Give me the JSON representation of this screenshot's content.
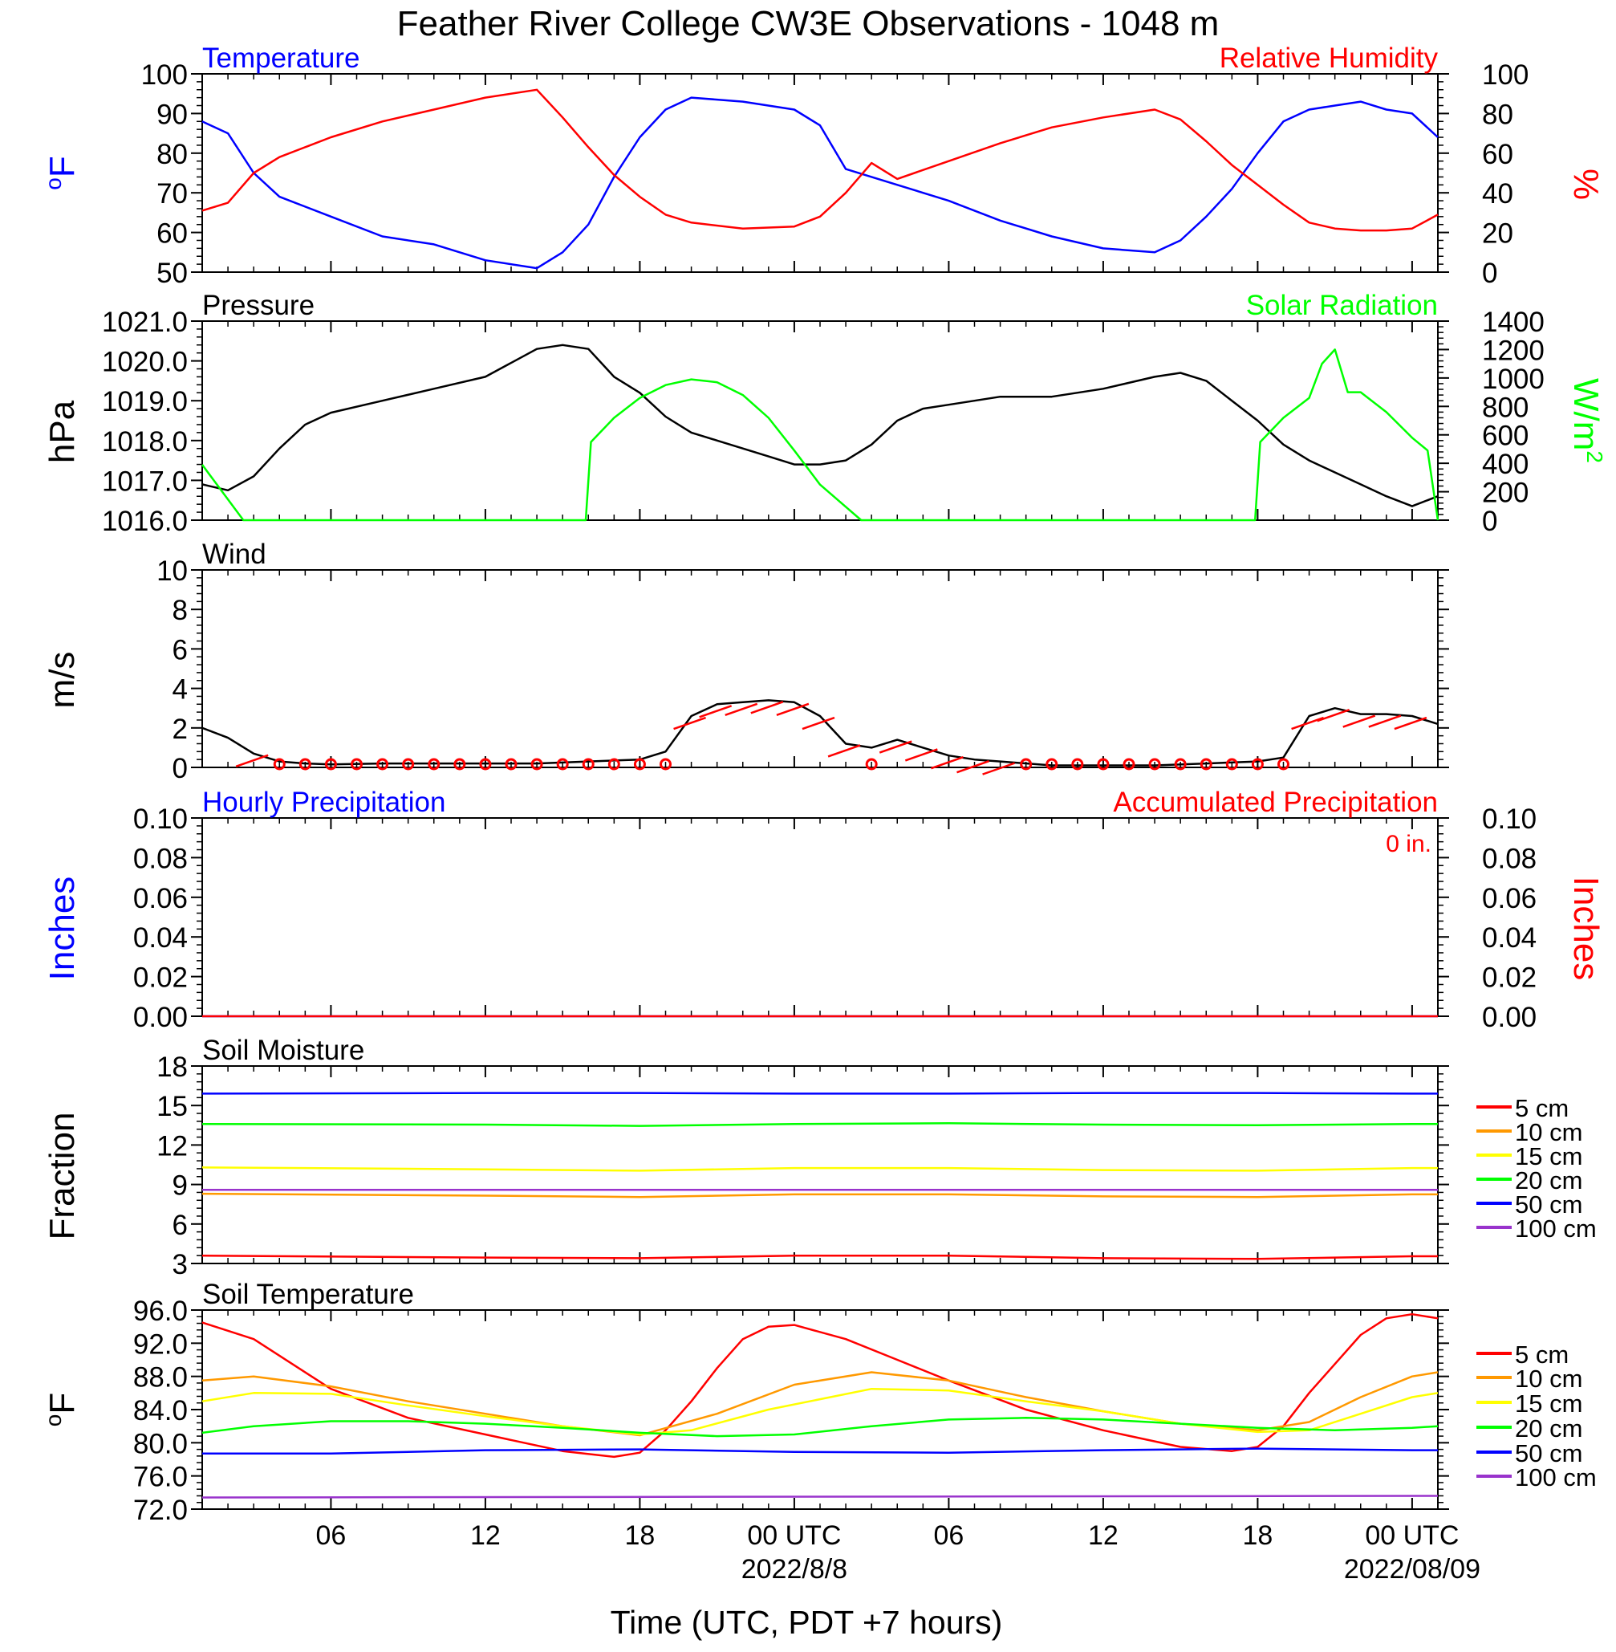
{
  "title": "Feather River College CW3E Observations - 1048 m",
  "x_axis": {
    "label": "Time (UTC, PDT +7 hours)",
    "tick_labels": [
      "06",
      "12",
      "18",
      "00 UTC",
      "06",
      "12",
      "18",
      "00 UTC"
    ],
    "tick_hours": [
      6,
      12,
      18,
      24,
      30,
      36,
      42,
      48
    ],
    "date_labels": [
      {
        "text": "2022/8/8",
        "hour": 24
      },
      {
        "text": "2022/08/09",
        "hour": 48
      }
    ],
    "range_hours": [
      1,
      49
    ]
  },
  "chart_data": [
    {
      "type": "line",
      "name": "temperature-humidity",
      "left_title": "Temperature",
      "right_title": "Relative Humidity",
      "left_unit": "oF",
      "right_unit": "%",
      "ylim_left": [
        50,
        100
      ],
      "ylim_right": [
        0,
        100
      ],
      "yticks_left": [
        50,
        60,
        70,
        80,
        90,
        100
      ],
      "yticks_right": [
        0,
        20,
        40,
        60,
        80,
        100
      ],
      "colors": {
        "left": "#0000ff",
        "right": "#ff0000"
      },
      "series": [
        {
          "axis": "left",
          "x": [
            1,
            2,
            3,
            4,
            6,
            8,
            10,
            12,
            14,
            15,
            16,
            17,
            18,
            19,
            20,
            22,
            24,
            25,
            26,
            27,
            28,
            30,
            32,
            34,
            36,
            38,
            39,
            40,
            41,
            42,
            43,
            44,
            45,
            46,
            47,
            48,
            49
          ],
          "y": [
            88,
            85,
            75,
            69,
            64,
            59,
            57,
            53,
            51,
            55,
            62,
            74,
            84,
            91,
            94,
            93,
            91,
            87,
            76,
            74,
            72,
            68,
            63,
            59,
            56,
            55,
            58,
            64,
            71,
            80,
            88,
            91,
            92,
            93,
            91,
            90,
            84
          ]
        },
        {
          "axis": "right",
          "x": [
            1,
            2,
            3,
            4,
            6,
            8,
            10,
            12,
            14,
            15,
            16,
            17,
            18,
            19,
            20,
            22,
            24,
            25,
            26,
            27,
            28,
            30,
            32,
            34,
            36,
            38,
            39,
            40,
            41,
            42,
            43,
            44,
            45,
            46,
            47,
            48,
            49
          ],
          "y": [
            31,
            35,
            50,
            58,
            68,
            76,
            82,
            88,
            92,
            78,
            63,
            49,
            38,
            29,
            25,
            22,
            23,
            28,
            40,
            55,
            47,
            56,
            65,
            73,
            78,
            82,
            77,
            66,
            54,
            44,
            34,
            25,
            22,
            21,
            21,
            22,
            29
          ]
        }
      ]
    },
    {
      "type": "line",
      "name": "pressure-solar",
      "left_title": "Pressure",
      "right_title": "Solar Radiation",
      "left_unit": "hPa",
      "right_unit": "W/m",
      "ylim_left": [
        1016.0,
        1021.0
      ],
      "ylim_right": [
        0,
        1400
      ],
      "yticks_left": [
        "1016.0",
        "1017.0",
        "1018.0",
        "1019.0",
        "1020.0",
        "1021.0"
      ],
      "yticks_right": [
        0,
        200,
        400,
        600,
        800,
        1000,
        1200,
        1400
      ],
      "colors": {
        "left": "#000000",
        "right": "#00ff00"
      },
      "series": [
        {
          "axis": "left",
          "x": [
            1,
            2,
            3,
            4,
            5,
            6,
            8,
            10,
            12,
            14,
            15,
            16,
            17,
            18,
            19,
            20,
            21,
            22,
            23,
            24,
            25,
            26,
            27,
            28,
            29,
            30,
            32,
            34,
            36,
            38,
            39,
            40,
            41,
            42,
            43,
            44,
            45,
            46,
            47,
            48,
            49
          ],
          "y": [
            1016.9,
            1016.75,
            1017.1,
            1017.8,
            1018.4,
            1018.7,
            1019.0,
            1019.3,
            1019.6,
            1020.3,
            1020.4,
            1020.3,
            1019.6,
            1019.2,
            1018.6,
            1018.2,
            1018.0,
            1017.8,
            1017.6,
            1017.4,
            1017.4,
            1017.5,
            1017.9,
            1018.5,
            1018.8,
            1018.9,
            1019.1,
            1019.1,
            1019.3,
            1019.6,
            1019.7,
            1019.5,
            1019.0,
            1018.5,
            1017.9,
            1017.5,
            1017.2,
            1016.9,
            1016.6,
            1016.35,
            1016.6
          ]
        },
        {
          "axis": "right",
          "x": [
            1,
            2.6,
            15.9,
            16.1,
            17,
            18,
            19,
            20,
            21,
            22,
            23,
            24,
            25,
            26.6,
            41.9,
            42.1,
            43,
            44,
            44.5,
            45,
            45.5,
            46,
            47,
            48,
            48.6,
            49
          ],
          "y": [
            390,
            0,
            0,
            550,
            720,
            860,
            950,
            990,
            970,
            880,
            720,
            490,
            250,
            0,
            0,
            550,
            720,
            860,
            1100,
            1200,
            900,
            900,
            760,
            580,
            490,
            0
          ]
        }
      ]
    },
    {
      "type": "line",
      "name": "wind",
      "left_title": "Wind",
      "left_unit": "m/s",
      "ylim_left": [
        0,
        10
      ],
      "yticks_left": [
        0,
        2,
        4,
        6,
        8,
        10
      ],
      "colors": {
        "left": "#000000",
        "barbs": "#ff0000"
      },
      "series": [
        {
          "axis": "left",
          "x": [
            1,
            2,
            3,
            4,
            5,
            6,
            8,
            10,
            12,
            14,
            16,
            18,
            19,
            20,
            21,
            22,
            23,
            24,
            25,
            26,
            27,
            28,
            29,
            30,
            31,
            32,
            34,
            36,
            38,
            40,
            42,
            43,
            44,
            45,
            46,
            47,
            48,
            49
          ],
          "y": [
            2.0,
            1.5,
            0.7,
            0.3,
            0.2,
            0.15,
            0.2,
            0.2,
            0.2,
            0.2,
            0.3,
            0.4,
            0.8,
            2.6,
            3.2,
            3.3,
            3.4,
            3.3,
            2.6,
            1.2,
            1.0,
            1.4,
            1.0,
            0.6,
            0.4,
            0.3,
            0.1,
            0.1,
            0.1,
            0.2,
            0.3,
            0.5,
            2.6,
            3.0,
            2.7,
            2.7,
            2.6,
            2.2
          ]
        }
      ],
      "barb_points": [
        {
          "x": 3,
          "calm": false
        },
        {
          "x": 4,
          "calm": true
        },
        {
          "x": 5,
          "calm": true
        },
        {
          "x": 6,
          "calm": true
        },
        {
          "x": 7,
          "calm": true
        },
        {
          "x": 8,
          "calm": true
        },
        {
          "x": 9,
          "calm": true
        },
        {
          "x": 10,
          "calm": true
        },
        {
          "x": 11,
          "calm": true
        },
        {
          "x": 12,
          "calm": true
        },
        {
          "x": 13,
          "calm": true
        },
        {
          "x": 14,
          "calm": true
        },
        {
          "x": 15,
          "calm": true
        },
        {
          "x": 16,
          "calm": true
        },
        {
          "x": 17,
          "calm": true
        },
        {
          "x": 18,
          "calm": true
        },
        {
          "x": 19,
          "calm": true
        },
        {
          "x": 20,
          "calm": false
        },
        {
          "x": 21,
          "calm": false
        },
        {
          "x": 22,
          "calm": false
        },
        {
          "x": 23,
          "calm": false
        },
        {
          "x": 24,
          "calm": false
        },
        {
          "x": 25,
          "calm": false
        },
        {
          "x": 26,
          "calm": false
        },
        {
          "x": 27,
          "calm": true
        },
        {
          "x": 28,
          "calm": false
        },
        {
          "x": 29,
          "calm": false
        },
        {
          "x": 30,
          "calm": false
        },
        {
          "x": 31,
          "calm": false
        },
        {
          "x": 32,
          "calm": false
        },
        {
          "x": 33,
          "calm": true
        },
        {
          "x": 34,
          "calm": true
        },
        {
          "x": 35,
          "calm": true
        },
        {
          "x": 36,
          "calm": true
        },
        {
          "x": 37,
          "calm": true
        },
        {
          "x": 38,
          "calm": true
        },
        {
          "x": 39,
          "calm": true
        },
        {
          "x": 40,
          "calm": true
        },
        {
          "x": 41,
          "calm": true
        },
        {
          "x": 42,
          "calm": true
        },
        {
          "x": 43,
          "calm": true
        },
        {
          "x": 44,
          "calm": false
        },
        {
          "x": 45,
          "calm": false
        },
        {
          "x": 46,
          "calm": false
        },
        {
          "x": 47,
          "calm": false
        },
        {
          "x": 48,
          "calm": false
        }
      ]
    },
    {
      "type": "line",
      "name": "precipitation",
      "left_title": "Hourly Precipitation",
      "right_title": "Accumulated Precipitation",
      "left_unit": "Inches",
      "right_unit": "Inches",
      "annotation": "0 in.",
      "ylim_left": [
        0.0,
        0.1
      ],
      "ylim_right": [
        0.0,
        0.1
      ],
      "yticks_left": [
        "0.00",
        "0.02",
        "0.04",
        "0.06",
        "0.08",
        "0.10"
      ],
      "yticks_right": [
        "0.00",
        "0.02",
        "0.04",
        "0.06",
        "0.08",
        "0.10"
      ],
      "colors": {
        "left": "#0000ff",
        "right": "#ff0000"
      },
      "series": [
        {
          "axis": "left",
          "x": [
            1,
            49
          ],
          "y": [
            0.0,
            0.0
          ]
        },
        {
          "axis": "right",
          "x": [
            1,
            49
          ],
          "y": [
            0.0,
            0.0
          ]
        }
      ]
    },
    {
      "type": "line",
      "name": "soil-moisture",
      "left_title": "Soil Moisture",
      "left_unit": "Fraction",
      "ylim_left": [
        3,
        18
      ],
      "yticks_left": [
        3,
        6,
        9,
        12,
        15,
        18
      ],
      "legend": [
        "5 cm",
        "10 cm",
        "15 cm",
        "20 cm",
        "50 cm",
        "100 cm"
      ],
      "legend_colors": [
        "#ff0000",
        "#ff9900",
        "#ffff00",
        "#00ff00",
        "#0000ff",
        "#9933cc"
      ],
      "series": [
        {
          "x": [
            1,
            12,
            18,
            24,
            30,
            36,
            42,
            48,
            49
          ],
          "y": [
            3.6,
            3.45,
            3.4,
            3.6,
            3.6,
            3.4,
            3.35,
            3.55,
            3.55
          ]
        },
        {
          "x": [
            1,
            12,
            18,
            24,
            30,
            36,
            42,
            48,
            49
          ],
          "y": [
            8.3,
            8.15,
            8.05,
            8.25,
            8.25,
            8.1,
            8.05,
            8.25,
            8.25
          ]
        },
        {
          "x": [
            1,
            12,
            18,
            24,
            30,
            36,
            42,
            48,
            49
          ],
          "y": [
            10.3,
            10.15,
            10.05,
            10.25,
            10.25,
            10.1,
            10.05,
            10.25,
            10.25
          ]
        },
        {
          "x": [
            1,
            12,
            18,
            24,
            30,
            36,
            42,
            48,
            49
          ],
          "y": [
            13.6,
            13.55,
            13.45,
            13.6,
            13.65,
            13.55,
            13.5,
            13.6,
            13.6
          ]
        },
        {
          "x": [
            1,
            12,
            18,
            24,
            30,
            36,
            42,
            48,
            49
          ],
          "y": [
            15.9,
            15.95,
            15.95,
            15.9,
            15.9,
            15.95,
            15.95,
            15.9,
            15.9
          ]
        },
        {
          "x": [
            1,
            49
          ],
          "y": [
            8.6,
            8.6
          ]
        }
      ]
    },
    {
      "type": "line",
      "name": "soil-temperature",
      "left_title": "Soil Temperature",
      "left_unit": "oF",
      "ylim_left": [
        72.0,
        96.0
      ],
      "yticks_left": [
        "72.0",
        "76.0",
        "80.0",
        "84.0",
        "88.0",
        "92.0",
        "96.0"
      ],
      "legend": [
        "5 cm",
        "10 cm",
        "15 cm",
        "20 cm",
        "50 cm",
        "100 cm"
      ],
      "legend_colors": [
        "#ff0000",
        "#ff9900",
        "#ffff00",
        "#00ff00",
        "#0000ff",
        "#9933cc"
      ],
      "series": [
        {
          "x": [
            1,
            3,
            6,
            9,
            12,
            15,
            17,
            18,
            19,
            20,
            21,
            22,
            23,
            24,
            26,
            28,
            30,
            33,
            36,
            39,
            41,
            42,
            43,
            44,
            45,
            46,
            47,
            48,
            49
          ],
          "y": [
            94.5,
            92.5,
            86.5,
            83.0,
            81.0,
            79.0,
            78.3,
            78.8,
            81.5,
            85.0,
            89.0,
            92.5,
            94.0,
            94.2,
            92.5,
            90.0,
            87.5,
            84.0,
            81.5,
            79.5,
            79.0,
            79.5,
            82.0,
            86.0,
            89.5,
            93.0,
            95.0,
            95.5,
            95.0
          ]
        },
        {
          "x": [
            1,
            3,
            6,
            9,
            12,
            15,
            18,
            21,
            24,
            27,
            30,
            33,
            36,
            39,
            42,
            44,
            46,
            48,
            49
          ],
          "y": [
            87.5,
            88.0,
            86.8,
            85.0,
            83.5,
            82.0,
            80.9,
            83.5,
            87.0,
            88.5,
            87.5,
            85.5,
            83.8,
            82.3,
            81.5,
            82.5,
            85.5,
            88.0,
            88.5
          ]
        },
        {
          "x": [
            1,
            3,
            6,
            9,
            12,
            15,
            18,
            20,
            23,
            27,
            30,
            33,
            36,
            39,
            42,
            44,
            46,
            48,
            49
          ],
          "y": [
            85.0,
            86.0,
            85.9,
            84.5,
            83.2,
            82.0,
            81.0,
            81.5,
            84.0,
            86.5,
            86.3,
            85.0,
            83.8,
            82.3,
            81.3,
            81.5,
            83.5,
            85.5,
            86.0
          ]
        },
        {
          "x": [
            1,
            3,
            6,
            9,
            12,
            15,
            18,
            21,
            24,
            27,
            30,
            33,
            36,
            39,
            42,
            45,
            48,
            49
          ],
          "y": [
            81.2,
            82.0,
            82.6,
            82.6,
            82.3,
            81.8,
            81.2,
            80.8,
            81.0,
            82.0,
            82.8,
            83.0,
            82.8,
            82.3,
            81.8,
            81.5,
            81.8,
            82.0
          ]
        },
        {
          "x": [
            1,
            6,
            12,
            18,
            24,
            30,
            36,
            42,
            48,
            49
          ],
          "y": [
            78.7,
            78.7,
            79.1,
            79.2,
            78.9,
            78.8,
            79.1,
            79.3,
            79.1,
            79.1
          ]
        },
        {
          "x": [
            1,
            49
          ],
          "y": [
            73.4,
            73.6
          ]
        }
      ]
    }
  ]
}
